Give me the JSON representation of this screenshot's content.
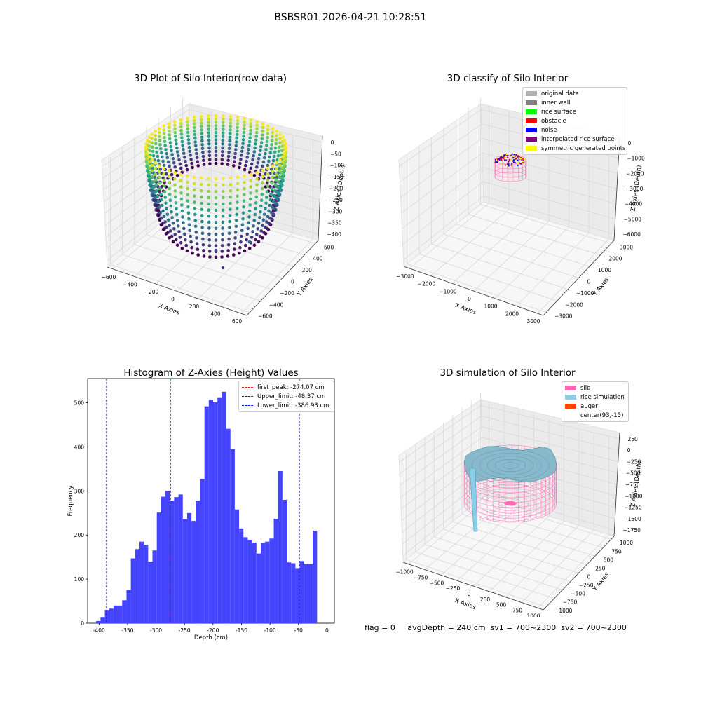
{
  "suptitle": "BSBSR01 2026-04-21 10:28:51",
  "status": {
    "flag": "flag = 0",
    "avg_depth": "avgDepth = 240 cm",
    "sv1": "sv1 = 700~2300",
    "sv2": "sv2 = 700~2300"
  },
  "chart_data": [
    {
      "type": "scatter",
      "projection": "3d",
      "title": "3D Plot of Silo Interior(row data)",
      "xlabel": "X Axies",
      "ylabel": "Y Axies",
      "zlabel": "Z Axies (Depth)",
      "x_ticks": [
        "−600",
        "−400",
        "−200",
        "0",
        "200",
        "400",
        "600"
      ],
      "y_ticks": [
        "−600",
        "−400",
        "−200",
        "0",
        "200",
        "400",
        "600"
      ],
      "z_ticks": [
        "0",
        "−50",
        "−100",
        "−150",
        "−200",
        "−250",
        "−300",
        "−350",
        "−400"
      ],
      "xlim": [
        -650,
        650
      ],
      "ylim": [
        -650,
        650
      ],
      "zlim": [
        -420,
        20
      ],
      "colormap": "viridis",
      "description_points": "ring-shaped point cloud of silo wall, depth colored from -400 (purple) to 0 (yellow)"
    },
    {
      "type": "scatter",
      "projection": "3d",
      "title": "3D classify of Silo Interior",
      "xlabel": "X Axies",
      "ylabel": "Y Axies",
      "zlabel": "Z Axies (Depth)",
      "x_ticks": [
        "−3000",
        "−2000",
        "−1000",
        "0",
        "1000",
        "2000",
        "3000"
      ],
      "y_ticks": [
        "−3000",
        "−2000",
        "−1000",
        "0",
        "1000",
        "2000",
        "3000"
      ],
      "z_ticks": [
        "0",
        "−1000",
        "−2000",
        "−3000",
        "−4000",
        "−5000",
        "−6000"
      ],
      "legend": [
        {
          "label": "original data",
          "color": "#b0b0b0"
        },
        {
          "label": "inner wall",
          "color": "#808080"
        },
        {
          "label": "rice surface",
          "color": "#00ff00"
        },
        {
          "label": "obstacle",
          "color": "#ff0000"
        },
        {
          "label": "noise",
          "color": "#0000ff"
        },
        {
          "label": "interpolated rice surface",
          "color": "#800080"
        },
        {
          "label": "symmetric generated points",
          "color": "#ffff00"
        }
      ]
    },
    {
      "type": "bar",
      "title": "Histogram of Z-Axies (Height) Values",
      "xlabel": "Depth (cm)",
      "ylabel": "Frequency",
      "xlim": [
        -420,
        13
      ],
      "ylim": [
        0,
        555
      ],
      "x_ticks": [
        -400,
        -350,
        -300,
        -250,
        -200,
        -150,
        -100,
        -50,
        0
      ],
      "y_ticks": [
        0,
        100,
        200,
        300,
        400,
        500
      ],
      "bin_start": -405,
      "bin_width": 7.6,
      "values": [
        5,
        14,
        30,
        33,
        40,
        40,
        52,
        75,
        147,
        168,
        185,
        178,
        140,
        165,
        251,
        287,
        300,
        278,
        286,
        292,
        237,
        250,
        232,
        278,
        327,
        492,
        507,
        501,
        511,
        525,
        441,
        395,
        258,
        215,
        195,
        189,
        183,
        158,
        182,
        185,
        192,
        237,
        345,
        280,
        138,
        136,
        125,
        141,
        134,
        134,
        210
      ],
      "bar_color": "#4444ff",
      "vlines": [
        {
          "label": "first_peak: -274.07 cm",
          "x": -274.07,
          "color": "#ff0000"
        },
        {
          "label": "Upper_limit: -48.37 cm",
          "x": -48.37,
          "color": "#0000ff"
        },
        {
          "label": "Lower_limit: -386.93 cm",
          "x": -386.93,
          "color": "#0000ff"
        }
      ]
    },
    {
      "type": "surface",
      "projection": "3d",
      "title": "3D simulation of Silo Interior",
      "xlabel": "X Axies",
      "ylabel": "Y Axies",
      "zlabel": "Z Axies (Depth)",
      "x_ticks": [
        "−1000",
        "−750",
        "−500",
        "−250",
        "0",
        "250",
        "500",
        "750",
        "1000"
      ],
      "y_ticks": [
        "−1000",
        "−750",
        "−500",
        "−250",
        "0",
        "250",
        "500",
        "750",
        "1000"
      ],
      "z_ticks": [
        "250",
        "0",
        "−250",
        "−500",
        "−750",
        "−1000",
        "−1250",
        "−1500",
        "−1750"
      ],
      "legend": [
        {
          "label": "silo",
          "color": "#ff69b4"
        },
        {
          "label": "rice simulation",
          "color": "#87ceeb"
        },
        {
          "label": "auger",
          "color": "#ff4500"
        },
        {
          "label": "center(93,-15)",
          "color": "none"
        }
      ]
    }
  ]
}
